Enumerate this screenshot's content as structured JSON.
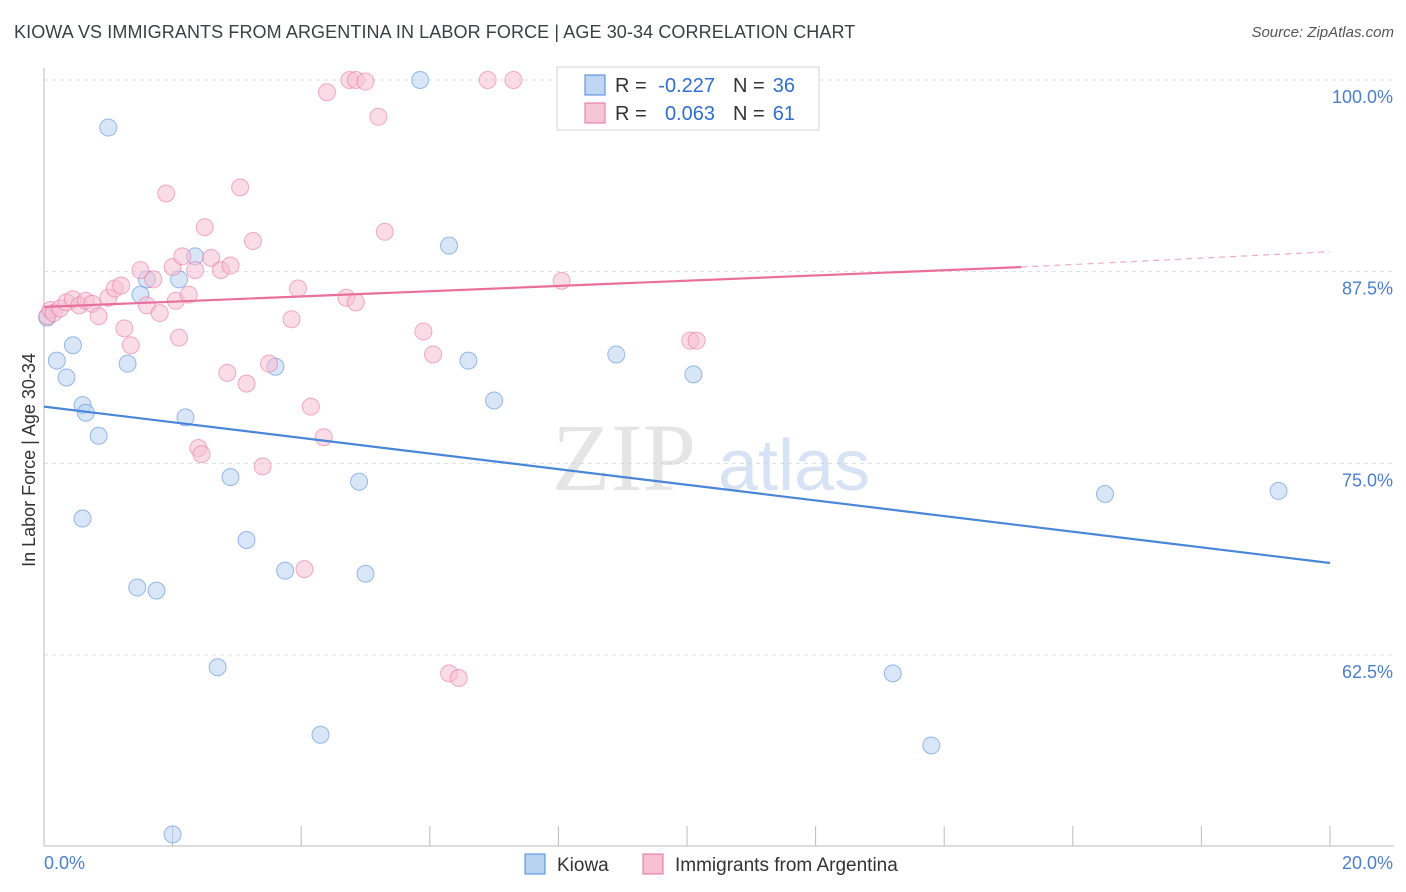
{
  "title": "KIOWA VS IMMIGRANTS FROM ARGENTINA IN LABOR FORCE | AGE 30-34 CORRELATION CHART",
  "source": "Source: ZipAtlas.com",
  "watermark": {
    "zip": "ZIP",
    "atlas": "atlas"
  },
  "chart_data": {
    "type": "scatter",
    "ylabel": "In Labor Force | Age 30-34",
    "xlim": [
      0,
      20
    ],
    "ylim": [
      50,
      103
    ],
    "y_ticks": [
      {
        "value": 100,
        "label": "100.0%"
      },
      {
        "value": 87.5,
        "label": "87.5%"
      },
      {
        "value": 75,
        "label": "75.0%"
      },
      {
        "value": 62.5,
        "label": "62.5%"
      }
    ],
    "x_tick_labels": {
      "left": "0.0%",
      "right": "20.0%"
    },
    "grid": true,
    "legend_position": "top-center",
    "series": [
      {
        "name": "Kiowa",
        "color": "#4a86d8",
        "fill": "#b8d2f2",
        "stats": {
          "r_label": "R =",
          "r": "-0.227",
          "n_label": "N =",
          "n": "36"
        },
        "trend": {
          "x0": 0,
          "y0": 78.7,
          "x1": 20,
          "y1": 68.5
        },
        "points": [
          [
            0.05,
            84.5
          ],
          [
            0.2,
            81.7
          ],
          [
            0.35,
            80.6
          ],
          [
            0.45,
            82.7
          ],
          [
            0.6,
            78.8
          ],
          [
            0.65,
            78.3
          ],
          [
            1.0,
            96.9
          ],
          [
            0.85,
            76.8
          ],
          [
            1.3,
            81.5
          ],
          [
            1.5,
            86.0
          ],
          [
            1.6,
            87.0
          ],
          [
            2.1,
            87.0
          ],
          [
            2.35,
            88.5
          ],
          [
            2.2,
            78.0
          ],
          [
            3.6,
            81.3
          ],
          [
            2.9,
            74.1
          ],
          [
            0.6,
            71.4
          ],
          [
            3.15,
            70.0
          ],
          [
            3.75,
            68.0
          ],
          [
            1.45,
            66.9
          ],
          [
            1.75,
            66.7
          ],
          [
            4.9,
            73.8
          ],
          [
            5.0,
            67.8
          ],
          [
            2.7,
            61.7
          ],
          [
            4.3,
            57.3
          ],
          [
            2.0,
            50.8
          ],
          [
            5.85,
            100.0
          ],
          [
            6.3,
            89.2
          ],
          [
            6.6,
            81.7
          ],
          [
            7.0,
            79.1
          ],
          [
            8.9,
            82.1
          ],
          [
            10.1,
            80.8
          ],
          [
            13.2,
            61.3
          ],
          [
            13.8,
            56.6
          ],
          [
            16.5,
            73.0
          ],
          [
            19.2,
            73.2
          ]
        ]
      },
      {
        "name": "Immigrants from Argentina",
        "color": "#e8709a",
        "fill": "#f6c0d2",
        "stats": {
          "r_label": "R =",
          "r": "0.063",
          "n_label": "N =",
          "n": "61"
        },
        "trend": {
          "x0": 0,
          "y0": 85.2,
          "x1": 15.2,
          "y1": 87.8,
          "dash_x1": 20,
          "dash_y1": 88.8
        },
        "points": [
          [
            0.05,
            84.6
          ],
          [
            0.1,
            85.0
          ],
          [
            0.15,
            84.8
          ],
          [
            0.25,
            85.1
          ],
          [
            0.35,
            85.5
          ],
          [
            0.45,
            85.7
          ],
          [
            0.55,
            85.3
          ],
          [
            0.65,
            85.6
          ],
          [
            0.75,
            85.4
          ],
          [
            0.85,
            84.6
          ],
          [
            1.0,
            85.8
          ],
          [
            1.1,
            86.4
          ],
          [
            1.2,
            86.6
          ],
          [
            1.25,
            83.8
          ],
          [
            1.35,
            82.7
          ],
          [
            1.5,
            87.6
          ],
          [
            1.6,
            85.3
          ],
          [
            1.7,
            87.0
          ],
          [
            1.8,
            84.8
          ],
          [
            1.9,
            92.6
          ],
          [
            2.0,
            87.8
          ],
          [
            2.05,
            85.6
          ],
          [
            2.1,
            83.2
          ],
          [
            2.15,
            88.5
          ],
          [
            2.25,
            86.0
          ],
          [
            2.35,
            87.6
          ],
          [
            2.5,
            90.4
          ],
          [
            2.6,
            88.4
          ],
          [
            2.75,
            87.6
          ],
          [
            2.85,
            80.9
          ],
          [
            2.9,
            87.9
          ],
          [
            3.05,
            93.0
          ],
          [
            3.15,
            80.2
          ],
          [
            3.25,
            89.5
          ],
          [
            3.4,
            74.8
          ],
          [
            3.5,
            81.5
          ],
          [
            2.4,
            76.0
          ],
          [
            2.45,
            75.6
          ],
          [
            3.85,
            84.4
          ],
          [
            3.95,
            86.4
          ],
          [
            4.05,
            68.1
          ],
          [
            4.15,
            78.7
          ],
          [
            4.35,
            76.7
          ],
          [
            4.7,
            85.8
          ],
          [
            4.85,
            85.5
          ],
          [
            4.4,
            99.2
          ],
          [
            4.75,
            100.0
          ],
          [
            4.85,
            100.0
          ],
          [
            5.0,
            99.9
          ],
          [
            5.2,
            97.6
          ],
          [
            5.3,
            90.1
          ],
          [
            5.9,
            83.6
          ],
          [
            6.05,
            82.1
          ],
          [
            6.3,
            61.3
          ],
          [
            6.45,
            61.0
          ],
          [
            6.9,
            100.0
          ],
          [
            7.3,
            100.0
          ],
          [
            8.05,
            86.9
          ],
          [
            8.2,
            100.0
          ],
          [
            10.05,
            83.0
          ],
          [
            10.15,
            83.0
          ]
        ]
      }
    ]
  }
}
